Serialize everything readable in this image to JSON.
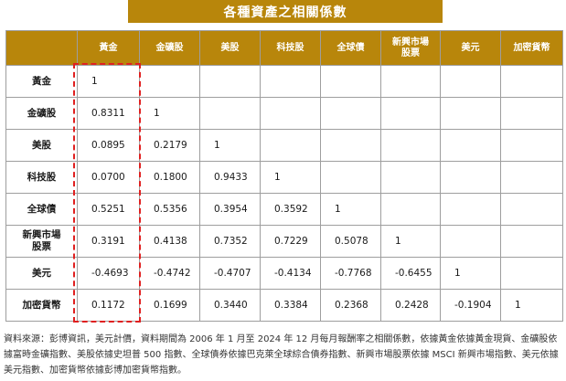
{
  "title": "各種資產之相關係數",
  "chart_data": {
    "type": "table",
    "title": "各種資產之相關係數",
    "columns": [
      "黃金",
      "金礦股",
      "美股",
      "科技股",
      "全球債",
      "新興市場\n股票",
      "美元",
      "加密貨幣"
    ],
    "rows": [
      "黃金",
      "金礦股",
      "美股",
      "科技股",
      "全球債",
      "新興市場\n股票",
      "美元",
      "加密貨幣"
    ],
    "values": [
      [
        "1",
        "",
        "",
        "",
        "",
        "",
        "",
        ""
      ],
      [
        "0.8311",
        "1",
        "",
        "",
        "",
        "",
        "",
        ""
      ],
      [
        "0.0895",
        "0.2179",
        "1",
        "",
        "",
        "",
        "",
        ""
      ],
      [
        "0.0700",
        "0.1800",
        "0.9433",
        "1",
        "",
        "",
        "",
        ""
      ],
      [
        "0.5251",
        "0.5356",
        "0.3954",
        "0.3592",
        "1",
        "",
        "",
        ""
      ],
      [
        "0.3191",
        "0.4138",
        "0.7352",
        "0.7229",
        "0.5078",
        "1",
        "",
        ""
      ],
      [
        "-0.4693",
        "-0.4742",
        "-0.4707",
        "-0.4134",
        "-0.7768",
        "-0.6455",
        "1",
        ""
      ],
      [
        "0.1172",
        "0.1699",
        "0.3440",
        "0.3384",
        "0.2368",
        "0.2428",
        "-0.1904",
        "1"
      ]
    ],
    "highlighted_column": "黃金",
    "colors": {
      "header": "#b8860b",
      "highlight": "#e02020",
      "border": "#9e9e9e"
    }
  },
  "source_note": "資料來源：彭博資訊，美元計價，資料期間為 2006 年 1 月至 2024 年 12 月每月報酬率之相關係數，依據黃金依據黃金現貨、金礦股依據富時金礦指數、美股依據史坦普 500 指數、全球債券依據巴克萊全球綜合債券指數、新興市場股票依據 MSCI 新興市場指數、美元依據美元指數、加密貨幣依據彭博加密貨幣指數。"
}
